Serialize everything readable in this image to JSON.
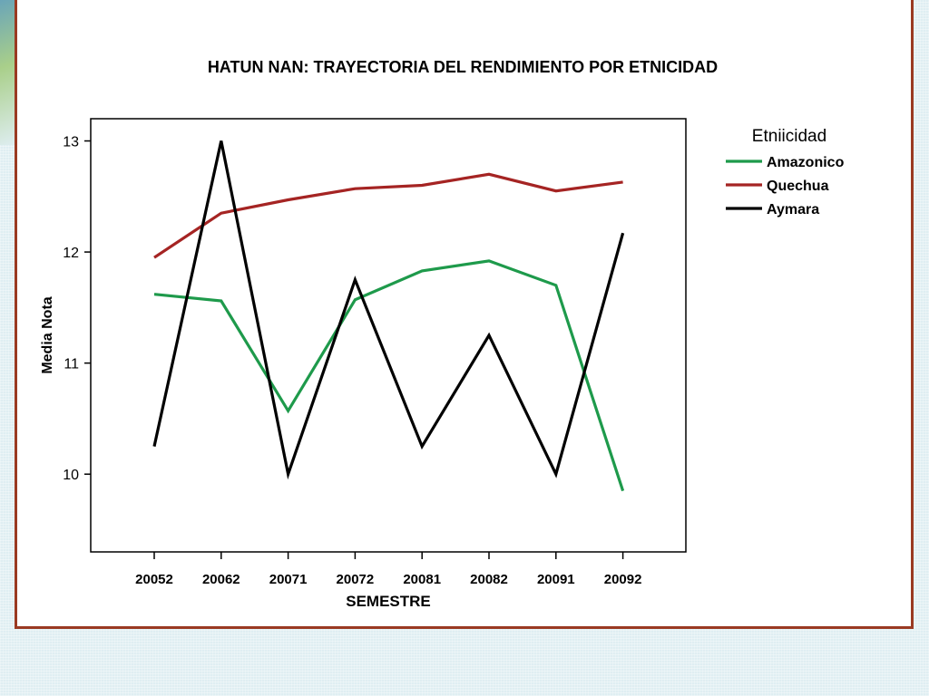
{
  "chart_data": {
    "type": "line",
    "title": "HATUN NAN: TRAYECTORIA DEL RENDIMIENTO POR ETNICIDAD",
    "xlabel": "SEMESTRE",
    "ylabel": "Media Nota",
    "categories": [
      "20052",
      "20062",
      "20071",
      "20072",
      "20081",
      "20082",
      "20091",
      "20092"
    ],
    "yticks": [
      10,
      11,
      12,
      13
    ],
    "ylim": [
      9.3,
      13.2
    ],
    "grid": false,
    "legend": {
      "title": "Etniicidad",
      "placement": "right"
    },
    "series": [
      {
        "name": "Amazonico",
        "color": "#1e9a4b",
        "values": [
          11.62,
          11.56,
          10.57,
          11.57,
          11.83,
          11.92,
          11.7,
          9.85
        ]
      },
      {
        "name": "Quechua",
        "color": "#a52423",
        "values": [
          11.95,
          12.35,
          12.47,
          12.57,
          12.6,
          12.7,
          12.55,
          12.63
        ]
      },
      {
        "name": "Aymara",
        "color": "#000000",
        "values": [
          10.25,
          13.0,
          10.0,
          11.75,
          10.25,
          11.25,
          10.0,
          12.17
        ]
      }
    ]
  }
}
